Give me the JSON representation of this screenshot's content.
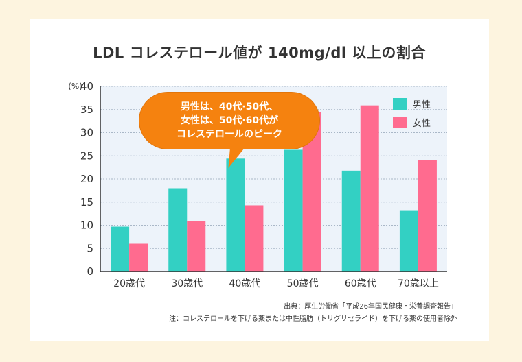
{
  "title": "LDL コレステロール値が 140mg/dl 以上の割合",
  "callout": {
    "lines": [
      "男性は、40代·50代、",
      "女性は、50代·60代が",
      "コレステロールのピーク"
    ]
  },
  "notes": {
    "source": "出典：厚生労働省「平成26年国民健康・栄養調査報告」",
    "note": "注：コレステロールを下げる薬または中性脂肪（トリグリセライド）を下げる薬の使用者除外"
  },
  "colors": {
    "male": "#33d0c3",
    "female": "#ff6b8f",
    "plot_bg": "#edf3fa",
    "grid": "#a9b7c7"
  },
  "chart_data": {
    "type": "bar",
    "unit_label": "(%)",
    "categories": [
      "20歳代",
      "30歳代",
      "40歳代",
      "50歳代",
      "60歳代",
      "70歳以上"
    ],
    "series": [
      {
        "name": "男性",
        "values": [
          9.7,
          18.0,
          24.4,
          26.3,
          21.8,
          13.1
        ]
      },
      {
        "name": "女性",
        "values": [
          6.0,
          10.9,
          14.3,
          34.5,
          35.9,
          24.0
        ]
      }
    ],
    "ylim": [
      0,
      40
    ],
    "yticks": [
      0,
      5,
      10,
      15,
      20,
      25,
      30,
      35,
      40
    ],
    "grid": true,
    "legend": "top-right"
  }
}
